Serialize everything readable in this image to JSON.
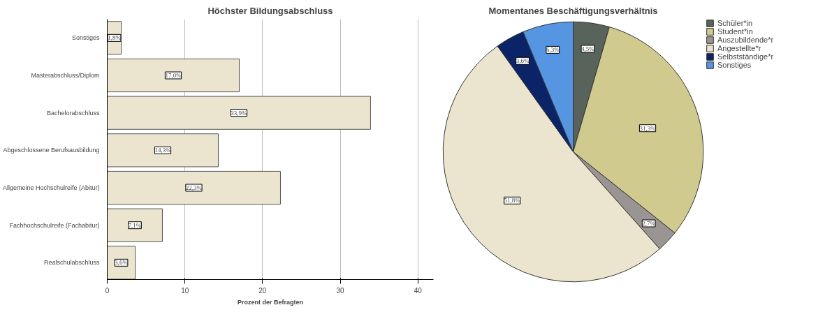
{
  "chart_data": [
    {
      "type": "bar",
      "orientation": "horizontal",
      "title": "Höchster Bildungsabschluss",
      "xlabel": "Prozent der Befragten",
      "categories": [
        "Sonstiges",
        "Masterabschluss/Diplom",
        "Bachelorabschluss",
        "Abgeschlossene Berufsausbildung",
        "Allgemeine Hochschulreife (Abitur)",
        "Fachhochschulreife (Fachabitur)",
        "Realschulabschluss"
      ],
      "values": [
        1.8,
        17.0,
        33.9,
        14.3,
        22.3,
        7.1,
        3.6
      ],
      "value_labels": [
        "1,8%",
        "17,0%",
        "33,9%",
        "14,3%",
        "22,3%",
        "7,1%",
        "3,6%"
      ],
      "color": "#ebe5cf",
      "xlim": [
        0,
        42
      ],
      "xticks": [
        0,
        10,
        20,
        30,
        40
      ],
      "grid": "x"
    },
    {
      "type": "pie",
      "title": "Momentanes Beschäftigungsverhältnis",
      "categories": [
        "Schüler*in",
        "Student*in",
        "Auszubildende*r",
        "Angestellte*r",
        "Selbstständige*r",
        "Sonstiges"
      ],
      "values": [
        4.5,
        31.3,
        2.7,
        51.8,
        3.6,
        6.3
      ],
      "value_labels": [
        "4,5%",
        "31,3%",
        "2,7%",
        "51,8%",
        "3,6%",
        "6,3%"
      ],
      "colors": [
        "#58635c",
        "#d0ca8f",
        "#9a9593",
        "#ebe5cf",
        "#0b2468",
        "#5595e2"
      ],
      "legend": "top right"
    }
  ]
}
